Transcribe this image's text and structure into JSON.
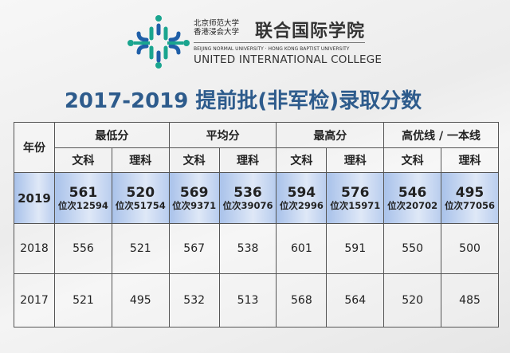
{
  "logo": {
    "cn_small_line1": "北京师范大学",
    "cn_small_line2": "香港浸会大学",
    "cn_big": "联合国际学院",
    "en_small": "BEIJING NORMAL UNIVERSITY · HONG KONG BAPTIST UNIVERSITY",
    "en_big": "UNITED INTERNATIONAL COLLEGE",
    "colors": {
      "teal": "#1aa58f",
      "blue": "#1f5fa8"
    }
  },
  "title": "2017-2019 提前批(非军检)录取分数",
  "table": {
    "year_header": "年份",
    "groups": [
      "最低分",
      "平均分",
      "最高分",
      "高优线 / 一本线"
    ],
    "subheaders": [
      "文科",
      "理科",
      "文科",
      "理科",
      "文科",
      "理科",
      "文科",
      "理科"
    ],
    "rows": [
      {
        "year": "2019",
        "cells": [
          {
            "score": "561",
            "rank": "位次12594"
          },
          {
            "score": "520",
            "rank": "位次51754"
          },
          {
            "score": "569",
            "rank": "位次9371"
          },
          {
            "score": "536",
            "rank": "位次39076"
          },
          {
            "score": "594",
            "rank": "位次2996"
          },
          {
            "score": "576",
            "rank": "位次15971"
          },
          {
            "score": "546",
            "rank": "位次20702"
          },
          {
            "score": "495",
            "rank": "位次77056"
          }
        ]
      },
      {
        "year": "2018",
        "cells": [
          "556",
          "521",
          "567",
          "538",
          "601",
          "591",
          "550",
          "500"
        ]
      },
      {
        "year": "2017",
        "cells": [
          "521",
          "495",
          "532",
          "513",
          "568",
          "564",
          "520",
          "485"
        ]
      }
    ],
    "highlight_color": "#b9cdee"
  }
}
